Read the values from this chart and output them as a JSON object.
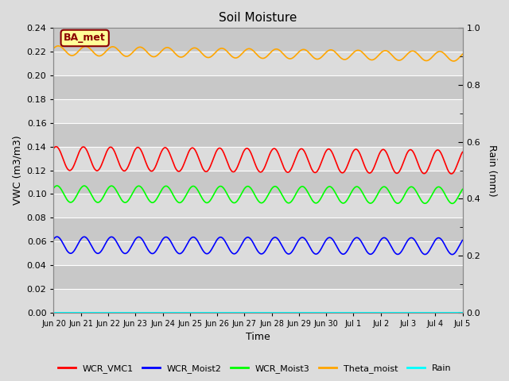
{
  "title": "Soil Moisture",
  "xlabel": "Time",
  "ylabel_left": "VWC (m3/m3)",
  "ylabel_right": "Rain (mm)",
  "ylim_left": [
    0.0,
    0.24
  ],
  "ylim_right": [
    0.0,
    1.0
  ],
  "bg_color": "#dcdcdc",
  "plot_bg_color": "#d3d3d3",
  "band_color_light": "#dcdcdc",
  "band_color_dark": "#c8c8c8",
  "grid_color": "#ffffff",
  "annotation_text": "BA_met",
  "annotation_bg": "#ffff99",
  "annotation_border": "#8b0000",
  "series": {
    "WCR_VMC1": {
      "color": "red",
      "mean": 0.13,
      "amplitude": 0.01,
      "period_days": 1.0,
      "phase": 1.0,
      "trend": -0.003
    },
    "WCR_Moist2": {
      "color": "blue",
      "mean": 0.057,
      "amplitude": 0.007,
      "period_days": 1.0,
      "phase": 0.8,
      "trend": -0.001
    },
    "WCR_Moist3": {
      "color": "lime",
      "mean": 0.1,
      "amplitude": 0.007,
      "period_days": 1.0,
      "phase": 0.8,
      "trend": -0.001
    },
    "Theta_moist": {
      "color": "orange",
      "mean": 0.221,
      "amplitude": 0.004,
      "period_days": 1.0,
      "phase": 0.5,
      "trend": -0.005
    },
    "Rain": {
      "color": "cyan",
      "mean": 0.0,
      "amplitude": 0.0,
      "period_days": 1.0,
      "phase": 0.0,
      "trend": 0.0
    }
  },
  "x_tick_labels": [
    "Jun 20",
    "Jun 21",
    "Jun 22",
    "Jun 23",
    "Jun 24",
    "Jun 25",
    "Jun 26",
    "Jun 27",
    "Jun 28",
    "Jun 29",
    "Jun 30",
    "Jul 1",
    "Jul 2",
    "Jul 3",
    "Jul 4",
    "Jul 5"
  ],
  "yticks_left": [
    0.0,
    0.02,
    0.04,
    0.06,
    0.08,
    0.1,
    0.12,
    0.14,
    0.16,
    0.18,
    0.2,
    0.22,
    0.24
  ],
  "yticks_right_labels": [
    0.0,
    0.2,
    0.4,
    0.6,
    0.8,
    1.0
  ],
  "yticks_right_minor": [
    0.1,
    0.3,
    0.5,
    0.7,
    0.9
  ],
  "legend_entries": [
    "WCR_VMC1",
    "WCR_Moist2",
    "WCR_Moist3",
    "Theta_moist",
    "Rain"
  ],
  "legend_colors": [
    "red",
    "blue",
    "lime",
    "orange",
    "cyan"
  ],
  "linewidth": 1.2
}
